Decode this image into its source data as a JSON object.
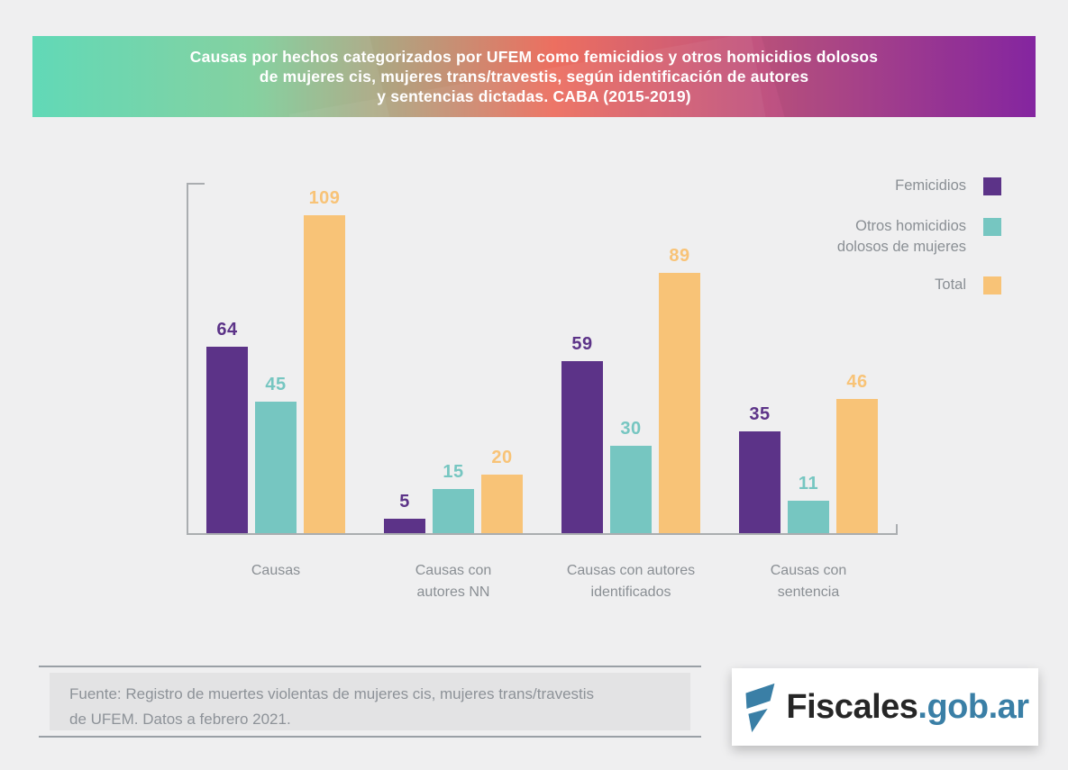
{
  "banner": {
    "lines": [
      "Causas por hechos categorizados por UFEM como femicidios y otros homicidios dolosos",
      "de mujeres cis, mujeres trans/travestis, según identificación de autores",
      "y sentencias dictadas. CABA (2015-2019)"
    ],
    "gradient": [
      "#58d7b3",
      "#ec6f60",
      "#8a27a7"
    ],
    "text_color": "#ffffff"
  },
  "chart_data": {
    "type": "bar",
    "categories": [
      "Causas",
      "Causas con autores NN",
      "Causas con autores identificados",
      "Causas con sentencia"
    ],
    "category_lines": [
      [
        "Causas"
      ],
      [
        "Causas con",
        "autores NN"
      ],
      [
        "Causas con autores",
        "identificados"
      ],
      [
        "Causas con",
        "sentencia"
      ]
    ],
    "series": [
      {
        "name": "Femicidios",
        "color": "#5c3388",
        "values": [
          64,
          5,
          59,
          35
        ]
      },
      {
        "name": "Otros homicidios dolosos de mujeres",
        "color": "#76c6c1",
        "values": [
          45,
          15,
          30,
          11
        ]
      },
      {
        "name": "Total",
        "color": "#f8c377",
        "values": [
          109,
          20,
          89,
          46
        ]
      }
    ],
    "ylim": [
      0,
      120
    ],
    "grid": false,
    "value_labels": true,
    "legend_position": "right",
    "axis_color": "#aaadb0"
  },
  "legend": {
    "items": [
      {
        "lines": [
          "Femicidios"
        ],
        "color": "#5c3388"
      },
      {
        "lines": [
          "Otros homicidios",
          "dolosos de mujeres"
        ],
        "color": "#76c6c1"
      },
      {
        "lines": [
          "Total"
        ],
        "color": "#f8c377"
      }
    ]
  },
  "footer": {
    "source_lines": [
      "Fuente: Registro de muertes violentas de mujeres cis, mujeres trans/travestis",
      "de UFEM. Datos a febrero 2021."
    ]
  },
  "logo": {
    "brand": "Fiscales",
    "suffix": ".gob.ar",
    "brand_color": "#262626",
    "suffix_color": "#3a7fa6"
  }
}
